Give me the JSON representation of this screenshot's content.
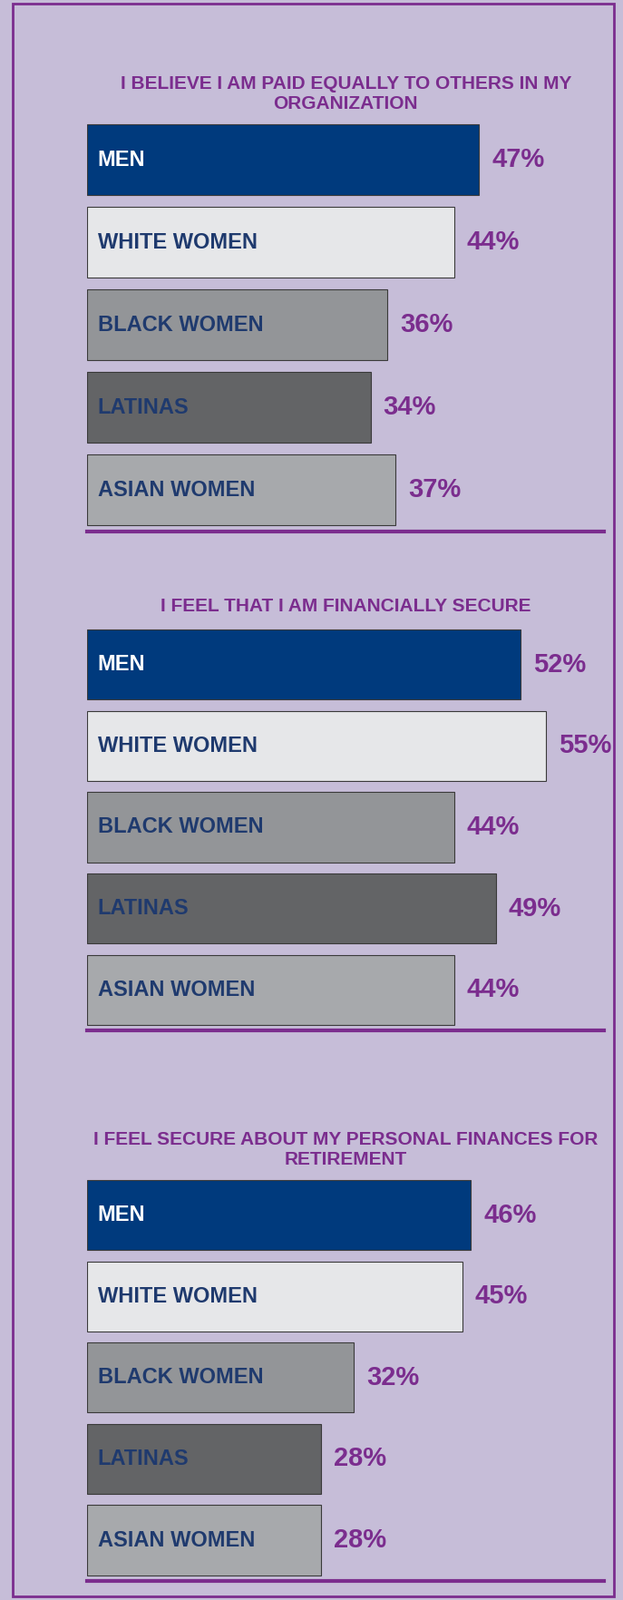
{
  "chart_data": [
    {
      "type": "bar",
      "orientation": "horizontal",
      "title": "I BELIEVE I AM PAID EQUALLY TO OTHERS IN MY ORGANIZATION",
      "categories": [
        "MEN",
        "WHITE WOMEN",
        "BLACK WOMEN",
        "LATINAS",
        "ASIAN WOMEN"
      ],
      "values": [
        47,
        44,
        36,
        34,
        37
      ],
      "value_labels": [
        "47%",
        "44%",
        "36%",
        "34%",
        "37%"
      ],
      "colors": [
        "#003a7d",
        "#e6e7e9",
        "#939598",
        "#636466",
        "#a7a9ac"
      ],
      "xlim": [
        0,
        62
      ],
      "data_labels": true,
      "tick_labels": false
    },
    {
      "type": "bar",
      "orientation": "horizontal",
      "title": "I FEEL THAT I AM FINANCIALLY SECURE",
      "categories": [
        "MEN",
        "WHITE WOMEN",
        "BLACK WOMEN",
        "LATINAS",
        "ASIAN WOMEN"
      ],
      "values": [
        52,
        55,
        44,
        49,
        44
      ],
      "value_labels": [
        "52%",
        "55%",
        "44%",
        "49%",
        "44%"
      ],
      "colors": [
        "#003a7d",
        "#e6e7e9",
        "#939598",
        "#636466",
        "#a7a9ac"
      ],
      "xlim": [
        0,
        62
      ],
      "data_labels": true,
      "tick_labels": false
    },
    {
      "type": "bar",
      "orientation": "horizontal",
      "title": "I FEEL SECURE ABOUT MY PERSONAL FINANCES FOR RETIREMENT",
      "categories": [
        "MEN",
        "WHITE WOMEN",
        "BLACK WOMEN",
        "LATINAS",
        "ASIAN WOMEN"
      ],
      "values": [
        46,
        45,
        32,
        28,
        28
      ],
      "value_labels": [
        "46%",
        "45%",
        "32%",
        "28%",
        "28%"
      ],
      "colors": [
        "#003a7d",
        "#e6e7e9",
        "#939598",
        "#636466",
        "#a7a9ac"
      ],
      "xlim": [
        0,
        62
      ],
      "data_labels": true,
      "tick_labels": false
    }
  ]
}
